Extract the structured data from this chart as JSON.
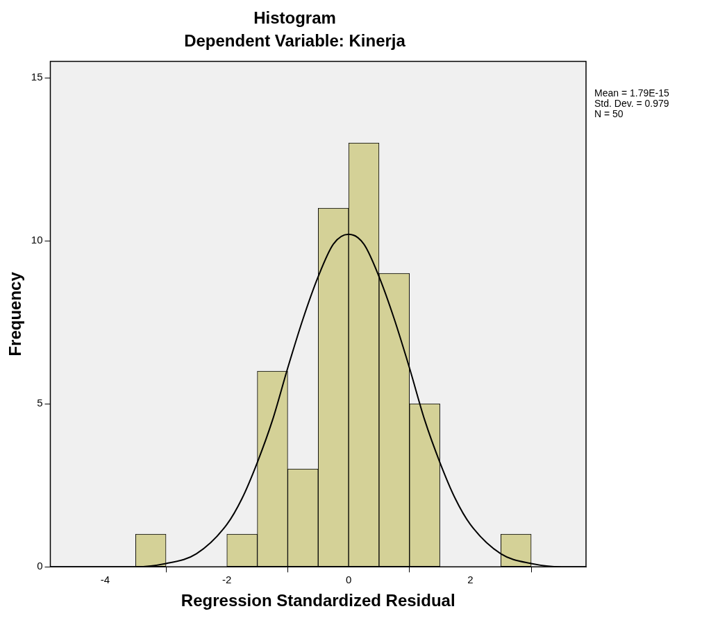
{
  "chart_data": {
    "type": "histogram",
    "title": "Histogram",
    "subtitle": "Dependent Variable: Kinerja",
    "xlabel": "Regression Standardized Residual",
    "ylabel": "Frequency",
    "bins": [
      -3.5,
      -3,
      -2.5,
      -2,
      -1.5,
      -1,
      -0.5,
      0,
      0.5,
      1,
      1.5,
      2,
      2.5,
      3
    ],
    "values": [
      1,
      0,
      0,
      1,
      6,
      3,
      11,
      13,
      9,
      5,
      0,
      0,
      1
    ],
    "color": "#d4d197",
    "series": [
      {
        "type": "line",
        "color": "#000000",
        "x": [
          -4.9,
          -4,
          -3.5,
          -3,
          -2.5,
          -2,
          -1.75,
          -1.5,
          -1.25,
          -1,
          -0.75,
          -0.5,
          -0.25,
          0,
          0.25,
          0.5,
          0.75,
          1,
          1.25,
          1.5,
          1.75,
          2,
          2.5,
          3,
          3.5,
          3.9
        ],
        "values": [
          0,
          0,
          0,
          0.1,
          0.4,
          1.3,
          2.1,
          3.2,
          4.5,
          6.1,
          7.6,
          8.9,
          9.9,
          10.2,
          9.9,
          8.9,
          7.6,
          6.1,
          4.5,
          3.2,
          2.1,
          1.3,
          0.4,
          0.1,
          0,
          0
        ]
      }
    ],
    "xlim": [
      -4.9,
      3.9
    ],
    "xticks": [
      -4,
      -2,
      0,
      2
    ],
    "ylim": [
      0,
      15.5
    ],
    "yticks": [
      0,
      5,
      10,
      15
    ],
    "grid": false,
    "legend": false,
    "marker": "none",
    "line_style": "solid",
    "annotations": [
      "Mean = 1.79E-15",
      "Std. Dev. = 0.979",
      "N = 50"
    ]
  }
}
